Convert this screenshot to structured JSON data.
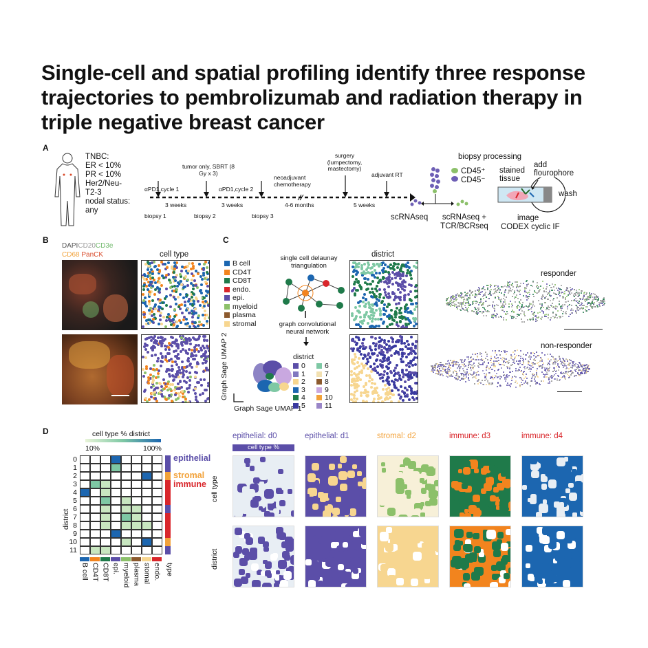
{
  "title": "Single-cell and spatial profiling identify three response trajectories to pembrolizumab and radiation therapy in triple negative breast cancer",
  "panels": {
    "a": "A",
    "b": "B",
    "c": "C",
    "d": "D"
  },
  "panel_a": {
    "criteria": [
      "TNBC:",
      "ER < 10%",
      "PR < 10%",
      "Her2/Neu-",
      "T2-3",
      "nodal status:",
      "any"
    ],
    "events": [
      "αPD1,cycle 1",
      "tumor only, SBRT (8 Gy x 3)",
      "αPD1,cycle 2",
      "neoadjuvant chemotherapy",
      "surgery (lumpectomy, mastectomy)",
      "adjuvant RT"
    ],
    "intervals": [
      "3 weeks",
      "3 weeks",
      "4-6 months",
      "5 weeks"
    ],
    "biopsies": [
      "biopsy 1",
      "biopsy 2",
      "biopsy 3"
    ],
    "assays": {
      "scrnaseq": "scRNAseq",
      "scrnaseq_tcr": "scRNAseq + TCR/BCRseq",
      "cd45_pos": "CD45⁺",
      "cd45_neg": "CD45⁻",
      "biopsy_processing": "biopsy processing",
      "stained_tissue": "stained tissue",
      "add_flourophore": "add flourophore",
      "wash": "wash",
      "image": "image",
      "codex": "CODEX cyclic IF"
    }
  },
  "panel_b": {
    "markers": [
      "DAPI",
      "CD20",
      "CD3e",
      "CD68",
      "PanCK"
    ],
    "marker_colors": [
      "#ffffff",
      "#b0b0b0",
      "#6fb86a",
      "#f2a23a",
      "#d94a2a"
    ],
    "cell_type_title": "cell type"
  },
  "panel_c": {
    "legend": [
      {
        "label": "B cell",
        "color": "#1c66b0"
      },
      {
        "label": "CD4T",
        "color": "#f2841e"
      },
      {
        "label": "CD8T",
        "color": "#1f7a4a"
      },
      {
        "label": "endo.",
        "color": "#d9262b"
      },
      {
        "label": "epi.",
        "color": "#5b4ea8"
      },
      {
        "label": "myeloid",
        "color": "#8cc06a"
      },
      {
        "label": "plasma",
        "color": "#8c5a2e"
      },
      {
        "label": "stromal",
        "color": "#f7d690"
      }
    ],
    "delaunay": "single cell delaunay triangulation",
    "gcn": "graph convolutional neural network",
    "umap_y": "Graph Sage UMAP 2",
    "umap_x": "Graph Sage UMAP 1",
    "district_title": "district",
    "district_legend_title": "district",
    "districts": [
      {
        "label": "0",
        "color": "#5b4ea8"
      },
      {
        "label": "1",
        "color": "#8177bf"
      },
      {
        "label": "2",
        "color": "#f7d690"
      },
      {
        "label": "3",
        "color": "#1c66b0"
      },
      {
        "label": "4",
        "color": "#1f7a4a"
      },
      {
        "label": "5",
        "color": "#3a3aa0"
      },
      {
        "label": "6",
        "color": "#7ec8a4"
      },
      {
        "label": "7",
        "color": "#f2e0b0"
      },
      {
        "label": "8",
        "color": "#8c5a2e"
      },
      {
        "label": "9",
        "color": "#c9a8e0"
      },
      {
        "label": "10",
        "color": "#f2a23a"
      },
      {
        "label": "11",
        "color": "#9a86c8"
      }
    ],
    "responder": "responder",
    "non_responder": "non-responder"
  },
  "panel_d": {
    "colorbar_title": "cell type % district",
    "colorbar_min": "10%",
    "colorbar_max": "100%",
    "y_axis": "district",
    "rows": [
      "0",
      "1",
      "2",
      "3",
      "4",
      "5",
      "6",
      "7",
      "8",
      "9",
      "10",
      "11"
    ],
    "cols": [
      "B cell",
      "CD4T",
      "CD8T",
      "epi.",
      "myeloid",
      "plasma",
      "stomal",
      "endo."
    ],
    "col_colors": [
      "#1c66b0",
      "#f2841e",
      "#1f7a4a",
      "#5b4ea8",
      "#8cc06a",
      "#8c5a2e",
      "#f7d690",
      "#d9262b"
    ],
    "type_label": "type",
    "groups": [
      {
        "label": "epithelial",
        "color": "#5b4ea8"
      },
      {
        "label": "stromal",
        "color": "#f2a23a"
      },
      {
        "label": "immune",
        "color": "#d9262b"
      }
    ],
    "heatmap": [
      [
        0,
        0,
        0,
        3,
        0,
        0,
        0,
        0
      ],
      [
        0,
        0,
        0,
        2,
        0,
        0,
        0,
        0
      ],
      [
        0,
        0,
        0,
        0,
        0,
        0,
        3,
        0
      ],
      [
        0,
        2,
        1,
        0,
        0,
        0,
        0,
        0
      ],
      [
        3,
        0,
        1,
        0,
        0,
        0,
        0,
        0
      ],
      [
        0,
        0,
        2,
        0,
        1,
        0,
        0,
        0
      ],
      [
        0,
        0,
        1,
        0,
        1,
        1,
        0,
        0
      ],
      [
        0,
        0,
        1,
        0,
        2,
        1,
        0,
        0
      ],
      [
        0,
        0,
        1,
        0,
        1,
        1,
        1,
        0
      ],
      [
        0,
        0,
        0,
        3,
        0,
        0,
        0,
        0
      ],
      [
        0,
        0,
        0,
        0,
        1,
        0,
        3,
        0
      ],
      [
        0,
        1,
        1,
        0,
        0,
        0,
        0,
        0
      ]
    ],
    "row_type_colors": [
      "#5b4ea8",
      "#5b4ea8",
      "#f2a23a",
      "#d9262b",
      "#d9262b",
      "#d9262b",
      "#5b4ea8",
      "#d9262b",
      "#d9262b",
      "#d9262b",
      "#f2a23a",
      "#5b4ea8"
    ],
    "tile_titles": [
      {
        "label": "epithelial: d0",
        "color": "#5b4ea8"
      },
      {
        "label": "epithelial: d1",
        "color": "#5b4ea8"
      },
      {
        "label": "stromal: d2",
        "color": "#f2a23a"
      },
      {
        "label": "immune: d3",
        "color": "#d9262b"
      },
      {
        "label": "immune: d4",
        "color": "#d9262b"
      }
    ],
    "cell_type_pct": "cell type %",
    "row_labels": [
      "cell type",
      "district"
    ]
  }
}
